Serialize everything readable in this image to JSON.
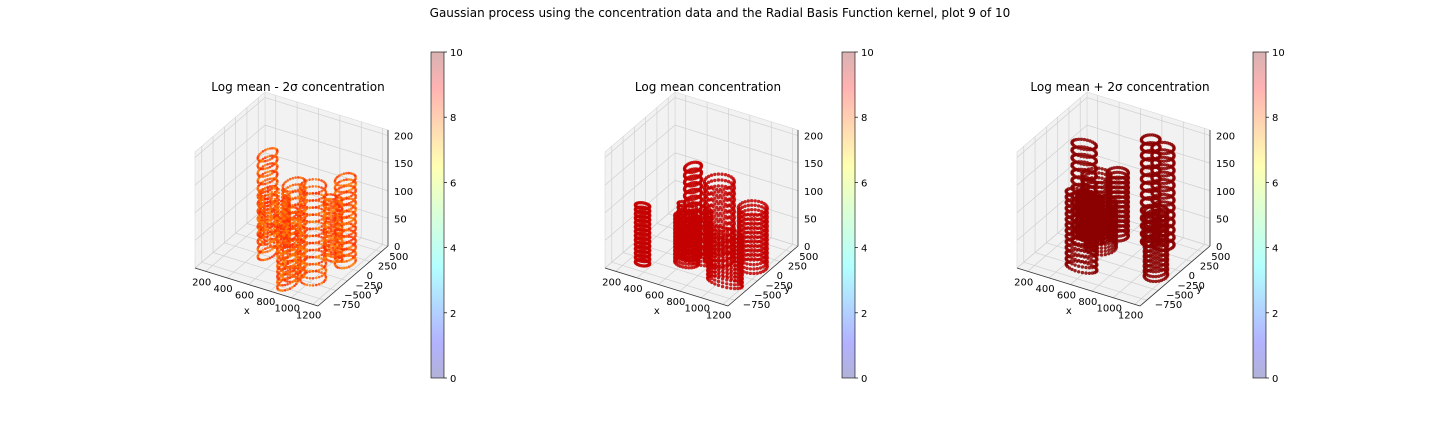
{
  "suptitle": "Gaussian process using the  concentration data and the Radial Basis Function kernel, plot 9 of 10",
  "chart_data": [
    {
      "type": "scatter3d",
      "title": "Log mean - 2σ concentration",
      "xlabel": "x",
      "ylabel": "y",
      "zlabel": "",
      "x_ticks": [
        "200",
        "400",
        "600",
        "800",
        "1000",
        "1200"
      ],
      "y_ticks": [
        "−750",
        "−500",
        "−250",
        "0",
        "250",
        "500"
      ],
      "z_ticks": [
        "0",
        "50",
        "100",
        "150",
        "200"
      ],
      "xlim": [
        100,
        1250
      ],
      "ylim": [
        -900,
        650
      ],
      "zlim": [
        0,
        210
      ],
      "colorbar": {
        "ticks": [
          "0",
          "2",
          "4",
          "6",
          "8",
          "10"
        ],
        "range": [
          0,
          10
        ],
        "colormap": "jet",
        "alpha": 0.3
      },
      "dominant_color": "#ff4a00",
      "approx_value_range": [
        6.5,
        8.5
      ]
    },
    {
      "type": "scatter3d",
      "title": "Log mean concentration",
      "xlabel": "x",
      "ylabel": "y",
      "zlabel": "",
      "x_ticks": [
        "200",
        "400",
        "600",
        "800",
        "1000",
        "1200"
      ],
      "y_ticks": [
        "−750",
        "−500",
        "−250",
        "0",
        "250",
        "500"
      ],
      "z_ticks": [
        "0",
        "50",
        "100",
        "150",
        "200"
      ],
      "xlim": [
        100,
        1250
      ],
      "ylim": [
        -900,
        650
      ],
      "zlim": [
        0,
        210
      ],
      "colorbar": {
        "ticks": [
          "0",
          "2",
          "4",
          "6",
          "8",
          "10"
        ],
        "range": [
          0,
          10
        ],
        "colormap": "jet",
        "alpha": 0.3
      },
      "dominant_color": "#c40000",
      "approx_value_range": [
        9.3,
        9.6
      ]
    },
    {
      "type": "scatter3d",
      "title": "Log mean + 2σ concentration",
      "xlabel": "x",
      "ylabel": "y",
      "zlabel": "",
      "x_ticks": [
        "200",
        "400",
        "600",
        "800",
        "1000",
        "1200"
      ],
      "y_ticks": [
        "−750",
        "−500",
        "−250",
        "0",
        "250",
        "500"
      ],
      "z_ticks": [
        "0",
        "50",
        "100",
        "150",
        "200"
      ],
      "xlim": [
        100,
        1250
      ],
      "ylim": [
        -900,
        650
      ],
      "zlim": [
        0,
        210
      ],
      "colorbar": {
        "ticks": [
          "0",
          "2",
          "4",
          "6",
          "8",
          "10"
        ],
        "range": [
          0,
          10
        ],
        "colormap": "jet",
        "alpha": 0.3
      },
      "dominant_color": "#8b0000",
      "approx_value_range": [
        10,
        10
      ]
    }
  ]
}
